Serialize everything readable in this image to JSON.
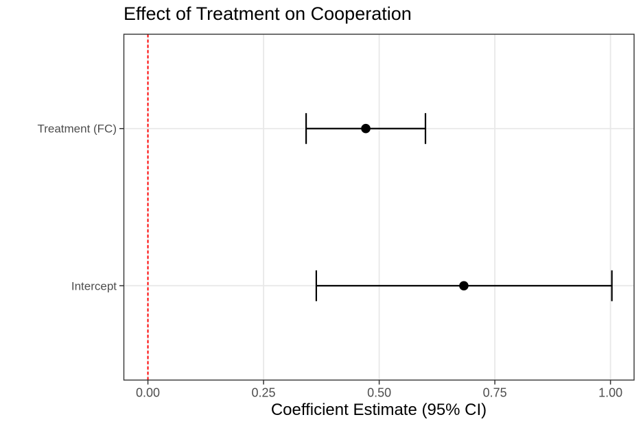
{
  "chart_data": {
    "type": "scatter",
    "subtype": "coefficient-forest-plot",
    "title": "Effect of Treatment on Cooperation",
    "xlabel": "Coefficient Estimate (95% CI)",
    "ylabel": "",
    "categories": [
      "Treatment (FC)",
      "Intercept"
    ],
    "series": [
      {
        "name": "coefficients",
        "points": [
          {
            "category": "Treatment (FC)",
            "estimate": 0.471,
            "ci_low": 0.342,
            "ci_high": 0.6
          },
          {
            "category": "Intercept",
            "estimate": 0.683,
            "ci_low": 0.364,
            "ci_high": 1.003
          }
        ]
      }
    ],
    "x_ticks": [
      0,
      0.25,
      0.5,
      0.75,
      1
    ],
    "x_tick_labels": [
      "0.00",
      "0.25",
      "0.50",
      "0.75",
      "1.00"
    ],
    "xlim": [
      -0.052,
      1.051
    ],
    "reference_line": {
      "x": 0,
      "style": "dashed",
      "label": "zero-line",
      "color": "#FF0000"
    },
    "grid": true,
    "legend": "none",
    "colors": {
      "point": "#000000",
      "errorbar": "#000000",
      "reference": "#FF0000",
      "gridline": "#E8E8E8",
      "panel_border": "#333333",
      "tick_mark": "#333333",
      "axis_text": "#4D4D4D",
      "title_text": "#000000"
    }
  }
}
